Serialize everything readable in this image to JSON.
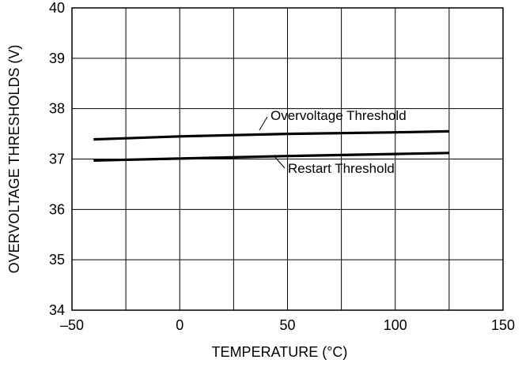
{
  "chart_data": {
    "type": "line",
    "title": "",
    "xlabel": "TEMPERATURE (°C)",
    "ylabel": "OVERVOLTAGE THRESHOLDS (V)",
    "xlim": [
      -50,
      150
    ],
    "ylim": [
      34,
      40
    ],
    "x_ticks": [
      -50,
      0,
      50,
      100,
      150
    ],
    "x_tick_labels": [
      "–50",
      "0",
      "50",
      "100",
      "150"
    ],
    "y_ticks": [
      34,
      35,
      36,
      37,
      38,
      39,
      40
    ],
    "y_tick_labels": [
      "34",
      "35",
      "36",
      "37",
      "38",
      "39",
      "40"
    ],
    "grid": true,
    "legend": "none",
    "series": [
      {
        "name": "Overvoltage Threshold",
        "x": [
          -40,
          0,
          50,
          100,
          125
        ],
        "y": [
          37.39,
          37.45,
          37.5,
          37.53,
          37.55
        ]
      },
      {
        "name": "Restart Threshold",
        "x": [
          -40,
          0,
          50,
          100,
          125
        ],
        "y": [
          36.97,
          37.01,
          37.06,
          37.1,
          37.12
        ]
      }
    ],
    "annotations": [
      "Overvoltage Threshold",
      "Restart Threshold"
    ]
  }
}
